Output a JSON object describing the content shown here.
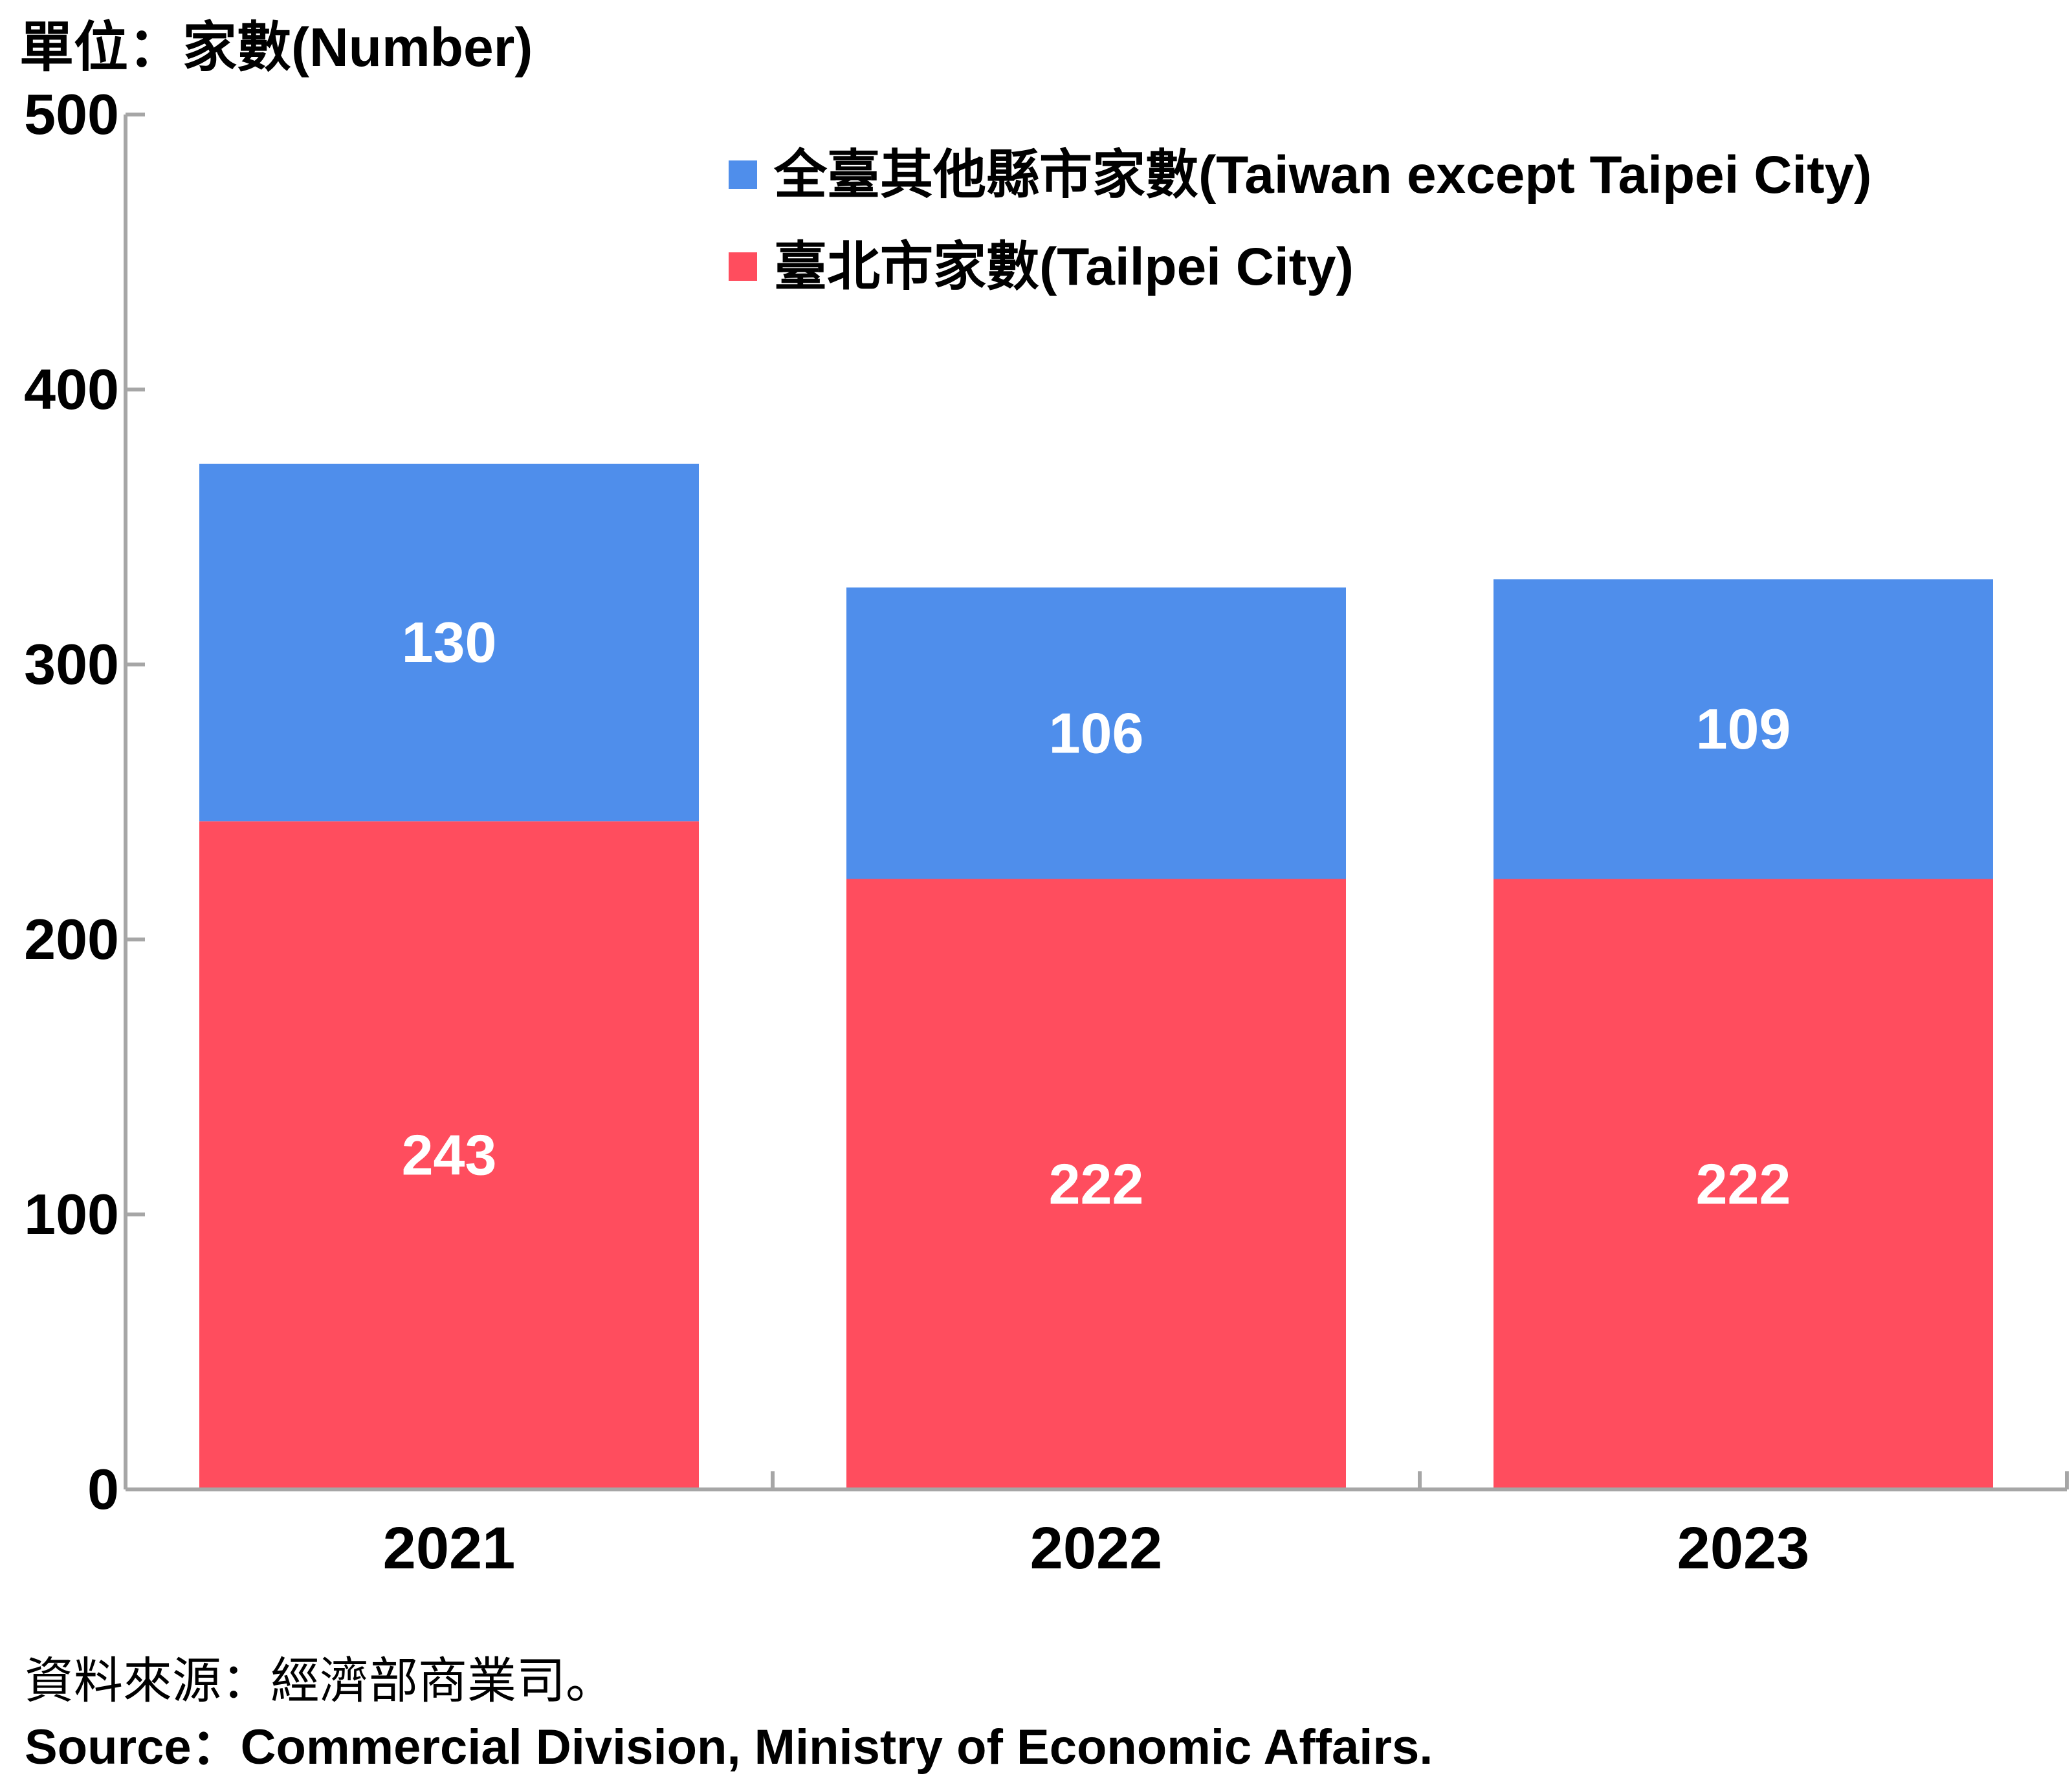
{
  "chart_data": {
    "type": "bar",
    "stacked": true,
    "unit_label": "單位：家數(Number)",
    "categories": [
      "2021",
      "2022",
      "2023"
    ],
    "series": [
      {
        "name": "臺北市家數(Tailpei City)",
        "values": [
          243,
          222,
          222
        ],
        "color": "#FF4D5E"
      },
      {
        "name": "全臺其他縣市家數(Taiwan except Taipei City)",
        "values": [
          130,
          106,
          109
        ],
        "color": "#4F8EEB"
      }
    ],
    "ylim": [
      0,
      500
    ],
    "yticks": [
      "0",
      "100",
      "200",
      "300",
      "400",
      "500"
    ],
    "grid": false,
    "legend_position": "top-right",
    "legend_order": [
      1,
      0
    ]
  },
  "source": {
    "zh": "資料來源：經濟部商業司。",
    "en": "Source：Commercial Division, Ministry of Economic Affairs."
  }
}
